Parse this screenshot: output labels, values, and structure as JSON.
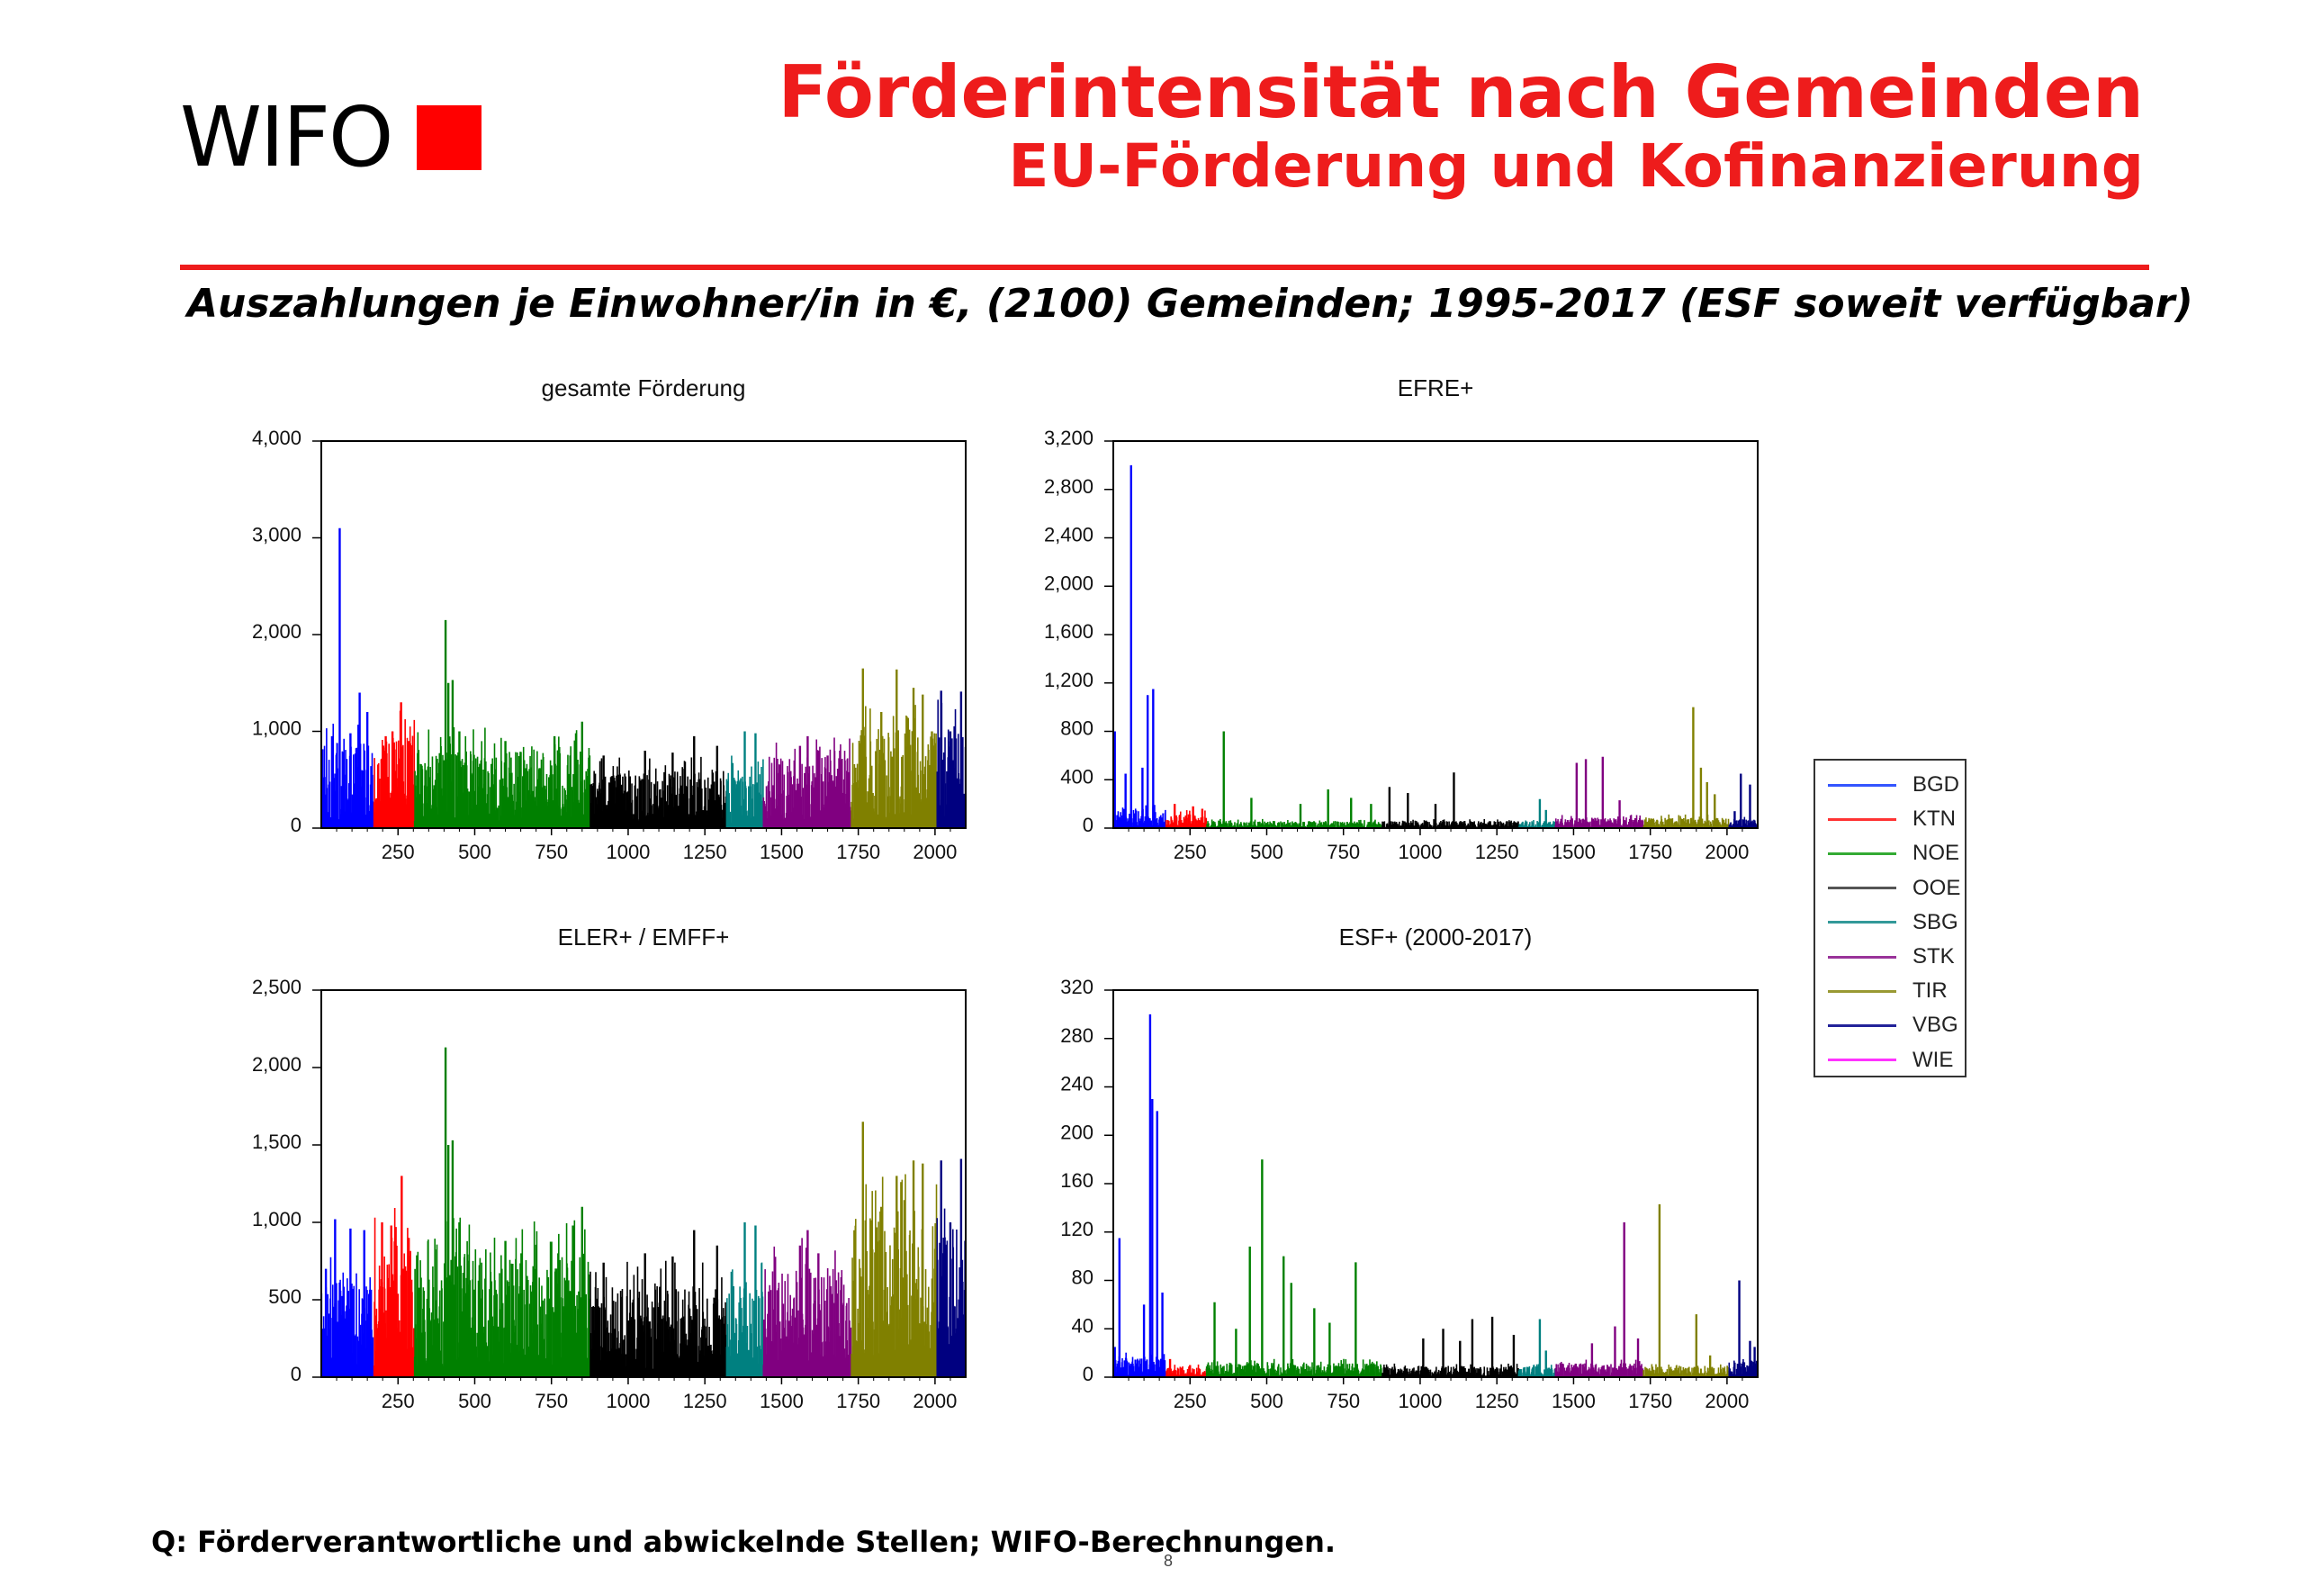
{
  "logo": {
    "text": "WIFO"
  },
  "header": {
    "title": "Förderintensität nach Gemeinden",
    "subtitle": "EU-Förderung und Kofinanzierung"
  },
  "subheading": "Auszahlungen je Einwohner/in in €, (2100) Gemeinden; 1995-2017 (ESF soweit verfügbar)",
  "source": "Q: Förderverantwortliche und abwickelnde Stellen; WIFO-Berechnungen.",
  "page_number": "8",
  "colors": {
    "accent_red": "#ee1c1c",
    "regions": {
      "BGD": "#0000ff",
      "KTN": "#ff0000",
      "NOE": "#008000",
      "OOE": "#000000",
      "SBG": "#008080",
      "STK": "#800080",
      "TIR": "#808000",
      "VBG": "#000080",
      "WIE": "#ff00ff"
    }
  },
  "legend": [
    {
      "label": "BGD",
      "color": "#3355ff"
    },
    {
      "label": "KTN",
      "color": "#ff3333"
    },
    {
      "label": "NOE",
      "color": "#33aa33"
    },
    {
      "label": "OOE",
      "color": "#555555"
    },
    {
      "label": "SBG",
      "color": "#339999"
    },
    {
      "label": "STK",
      "color": "#993399"
    },
    {
      "label": "TIR",
      "color": "#999933"
    },
    {
      "label": "VBG",
      "color": "#222299"
    },
    {
      "label": "WIE",
      "color": "#ff33ff"
    }
  ],
  "chart_data": [
    {
      "type": "bar",
      "title": "gesamte Förderung",
      "xlim": [
        0,
        2100
      ],
      "xticks": [
        250,
        500,
        750,
        1000,
        1250,
        1500,
        1750,
        2000
      ],
      "xtick_labels": [
        "250",
        "500",
        "750",
        "1000",
        "1250",
        "1500",
        "1750",
        "2000"
      ],
      "ylim": [
        0,
        4000
      ],
      "yticks": [
        0,
        1000,
        2000,
        3000,
        4000
      ],
      "ytick_labels": [
        "0",
        "1,000",
        "2,000",
        "3,000",
        "4,000"
      ],
      "segments": [
        {
          "region": "BGD",
          "from": 1,
          "to": 171,
          "typical": 600,
          "peaks": [
            [
              60,
              3100
            ],
            [
              125,
              1400
            ],
            [
              150,
              1200
            ],
            [
              35,
              950
            ],
            [
              95,
              980
            ]
          ]
        },
        {
          "region": "KTN",
          "from": 172,
          "to": 303,
          "typical": 650,
          "peaks": [
            [
              260,
              1300
            ],
            [
              232,
              1000
            ],
            [
              210,
              950
            ],
            [
              285,
              900
            ]
          ]
        },
        {
          "region": "NOE",
          "from": 304,
          "to": 876,
          "typical": 550,
          "peaks": [
            [
              405,
              2150
            ],
            [
              428,
              1530
            ],
            [
              414,
              1500
            ],
            [
              450,
              1000
            ],
            [
              850,
              1100
            ],
            [
              830,
              980
            ],
            [
              600,
              900
            ],
            [
              760,
              950
            ]
          ]
        },
        {
          "region": "OOE",
          "from": 877,
          "to": 1320,
          "typical": 400,
          "peaks": [
            [
              1215,
              950
            ],
            [
              1055,
              800
            ],
            [
              1145,
              780
            ],
            [
              920,
              750
            ],
            [
              1290,
              850
            ]
          ]
        },
        {
          "region": "SBG",
          "from": 1321,
          "to": 1440,
          "typical": 400,
          "peaks": [
            [
              1380,
              1000
            ],
            [
              1415,
              980
            ],
            [
              1340,
              600
            ]
          ]
        },
        {
          "region": "STK",
          "from": 1441,
          "to": 1727,
          "typical": 500,
          "peaks": [
            [
              1585,
              950
            ],
            [
              1560,
              850
            ],
            [
              1620,
              800
            ],
            [
              1650,
              750
            ]
          ]
        },
        {
          "region": "TIR",
          "from": 1728,
          "to": 2006,
          "typical": 700,
          "peaks": [
            [
              1765,
              1650
            ],
            [
              1875,
              1640
            ],
            [
              1930,
              1450
            ],
            [
              1960,
              1380
            ],
            [
              1825,
              1200
            ],
            [
              1990,
              1000
            ]
          ]
        },
        {
          "region": "VBG",
          "from": 2007,
          "to": 2100,
          "typical": 700,
          "peaks": [
            [
              2020,
              1420
            ],
            [
              2085,
              1410
            ],
            [
              2050,
              1000
            ]
          ]
        }
      ]
    },
    {
      "type": "bar",
      "title": "EFRE+",
      "xlim": [
        0,
        2100
      ],
      "xticks": [
        250,
        500,
        750,
        1000,
        1250,
        1500,
        1750,
        2000
      ],
      "xtick_labels": [
        "250",
        "500",
        "750",
        "1000",
        "1250",
        "1500",
        "1750",
        "2000"
      ],
      "ylim": [
        0,
        3200
      ],
      "yticks": [
        0,
        400,
        800,
        1200,
        1600,
        2000,
        2400,
        2800,
        3200
      ],
      "ytick_labels": [
        "0",
        "400",
        "800",
        "1,200",
        "1,600",
        "2,000",
        "2,400",
        "2,800",
        "3,200"
      ],
      "segments": [
        {
          "region": "BGD",
          "from": 1,
          "to": 171,
          "typical": 110,
          "peaks": [
            [
              58,
              3000
            ],
            [
              130,
              1150
            ],
            [
              112,
              1100
            ],
            [
              5,
              800
            ],
            [
              95,
              500
            ],
            [
              40,
              450
            ]
          ]
        },
        {
          "region": "KTN",
          "from": 172,
          "to": 303,
          "typical": 80,
          "peaks": [
            [
              200,
              200
            ],
            [
              260,
              180
            ],
            [
              290,
              160
            ]
          ]
        },
        {
          "region": "NOE",
          "from": 304,
          "to": 876,
          "typical": 40,
          "peaks": [
            [
              360,
              800
            ],
            [
              700,
              320
            ],
            [
              775,
              250
            ],
            [
              450,
              250
            ],
            [
              610,
              200
            ],
            [
              840,
              200
            ]
          ]
        },
        {
          "region": "OOE",
          "from": 877,
          "to": 1320,
          "typical": 40,
          "peaks": [
            [
              1110,
              460
            ],
            [
              900,
              340
            ],
            [
              960,
              290
            ],
            [
              1050,
              200
            ]
          ]
        },
        {
          "region": "SBG",
          "from": 1321,
          "to": 1440,
          "typical": 40,
          "peaks": [
            [
              1390,
              240
            ],
            [
              1410,
              150
            ]
          ]
        },
        {
          "region": "STK",
          "from": 1441,
          "to": 1727,
          "typical": 60,
          "peaks": [
            [
              1510,
              540
            ],
            [
              1540,
              570
            ],
            [
              1595,
              590
            ],
            [
              1650,
              230
            ]
          ]
        },
        {
          "region": "TIR",
          "from": 1728,
          "to": 2006,
          "typical": 60,
          "peaks": [
            [
              1890,
              1000
            ],
            [
              1915,
              500
            ],
            [
              1935,
              380
            ],
            [
              1960,
              280
            ]
          ]
        },
        {
          "region": "VBG",
          "from": 2007,
          "to": 2100,
          "typical": 50,
          "peaks": [
            [
              2045,
              450
            ],
            [
              2075,
              360
            ],
            [
              2025,
              140
            ]
          ]
        }
      ]
    },
    {
      "type": "bar",
      "title": "ELER+ / EMFF+",
      "xlim": [
        0,
        2100
      ],
      "xticks": [
        250,
        500,
        750,
        1000,
        1250,
        1500,
        1750,
        2000
      ],
      "xtick_labels": [
        "250",
        "500",
        "750",
        "1000",
        "1250",
        "1500",
        "1750",
        "2000"
      ],
      "ylim": [
        0,
        2500
      ],
      "yticks": [
        0,
        500,
        1000,
        1500,
        2000,
        2500
      ],
      "ytick_labels": [
        "0",
        "500",
        "1,000",
        "1,500",
        "2,000",
        "2,500"
      ],
      "segments": [
        {
          "region": "BGD",
          "from": 1,
          "to": 171,
          "typical": 450,
          "peaks": [
            [
              45,
              1020
            ],
            [
              95,
              960
            ],
            [
              140,
              950
            ],
            [
              15,
              700
            ]
          ]
        },
        {
          "region": "KTN",
          "from": 172,
          "to": 303,
          "typical": 600,
          "peaks": [
            [
              262,
              1300
            ],
            [
              228,
              980
            ],
            [
              198,
              1000
            ],
            [
              285,
              900
            ]
          ]
        },
        {
          "region": "NOE",
          "from": 304,
          "to": 876,
          "typical": 550,
          "peaks": [
            [
              405,
              2130
            ],
            [
              428,
              1530
            ],
            [
              414,
              1500
            ],
            [
              450,
              1000
            ],
            [
              850,
              1100
            ],
            [
              820,
              980
            ],
            [
              600,
              880
            ]
          ]
        },
        {
          "region": "OOE",
          "from": 877,
          "to": 1320,
          "typical": 400,
          "peaks": [
            [
              1215,
              950
            ],
            [
              1055,
              800
            ],
            [
              1145,
              780
            ],
            [
              920,
              740
            ],
            [
              1290,
              850
            ]
          ]
        },
        {
          "region": "SBG",
          "from": 1321,
          "to": 1440,
          "typical": 400,
          "peaks": [
            [
              1380,
              1000
            ],
            [
              1415,
              980
            ]
          ]
        },
        {
          "region": "STK",
          "from": 1441,
          "to": 1727,
          "typical": 480,
          "peaks": [
            [
              1585,
              950
            ],
            [
              1560,
              850
            ],
            [
              1620,
              800
            ]
          ]
        },
        {
          "region": "TIR",
          "from": 1728,
          "to": 2006,
          "typical": 700,
          "peaks": [
            [
              1765,
              1650
            ],
            [
              1875,
              1300
            ],
            [
              1930,
              1400
            ],
            [
              1960,
              1380
            ],
            [
              1825,
              1100
            ]
          ]
        },
        {
          "region": "VBG",
          "from": 2007,
          "to": 2100,
          "typical": 650,
          "peaks": [
            [
              2020,
              1400
            ],
            [
              2085,
              1410
            ],
            [
              2050,
              1000
            ]
          ]
        }
      ]
    },
    {
      "type": "bar",
      "title": "ESF+ (2000-2017)",
      "xlim": [
        0,
        2100
      ],
      "xticks": [
        250,
        500,
        750,
        1000,
        1250,
        1500,
        1750,
        2000
      ],
      "xtick_labels": [
        "250",
        "500",
        "750",
        "1000",
        "1250",
        "1500",
        "1750",
        "2000"
      ],
      "ylim": [
        0,
        320
      ],
      "yticks": [
        0,
        40,
        80,
        120,
        160,
        200,
        240,
        280,
        320
      ],
      "ytick_labels": [
        "0",
        "40",
        "80",
        "120",
        "160",
        "200",
        "240",
        "280",
        "320"
      ],
      "segments": [
        {
          "region": "BGD",
          "from": 1,
          "to": 171,
          "typical": 12,
          "peaks": [
            [
              120,
              300
            ],
            [
              127,
              230
            ],
            [
              143,
              220
            ],
            [
              20,
              115
            ],
            [
              100,
              60
            ],
            [
              160,
              70
            ],
            [
              5,
              25
            ]
          ]
        },
        {
          "region": "KTN",
          "from": 172,
          "to": 303,
          "typical": 6,
          "peaks": [
            [
              185,
              15
            ],
            [
              250,
              10
            ]
          ]
        },
        {
          "region": "NOE",
          "from": 304,
          "to": 876,
          "typical": 8,
          "peaks": [
            [
              485,
              180
            ],
            [
              445,
              108
            ],
            [
              555,
              100
            ],
            [
              580,
              78
            ],
            [
              655,
              57
            ],
            [
              790,
              95
            ],
            [
              705,
              45
            ],
            [
              330,
              62
            ],
            [
              400,
              40
            ]
          ]
        },
        {
          "region": "OOE",
          "from": 877,
          "to": 1320,
          "typical": 6,
          "peaks": [
            [
              1235,
              50
            ],
            [
              1170,
              48
            ],
            [
              1075,
              40
            ],
            [
              1130,
              30
            ],
            [
              1305,
              35
            ],
            [
              1010,
              32
            ]
          ]
        },
        {
          "region": "SBG",
          "from": 1321,
          "to": 1440,
          "typical": 6,
          "peaks": [
            [
              1390,
              48
            ],
            [
              1410,
              22
            ]
          ]
        },
        {
          "region": "STK",
          "from": 1441,
          "to": 1727,
          "typical": 8,
          "peaks": [
            [
              1665,
              128
            ],
            [
              1635,
              42
            ],
            [
              1710,
              32
            ],
            [
              1560,
              28
            ]
          ]
        },
        {
          "region": "TIR",
          "from": 1728,
          "to": 2006,
          "typical": 6,
          "peaks": [
            [
              1780,
              143
            ],
            [
              1900,
              52
            ],
            [
              1945,
              18
            ]
          ]
        },
        {
          "region": "VBG",
          "from": 2007,
          "to": 2100,
          "typical": 10,
          "peaks": [
            [
              2040,
              80
            ],
            [
              2075,
              30
            ],
            [
              2090,
              25
            ]
          ]
        }
      ]
    }
  ]
}
